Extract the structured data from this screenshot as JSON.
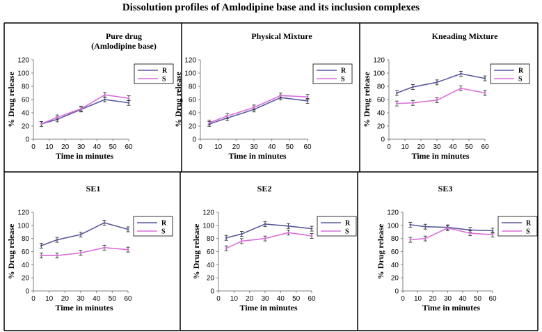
{
  "title": "Dissolution profiles of Amlodipine base and its inclusion complexes",
  "colors": {
    "R": "#5a5a9e",
    "S": "#d86ed8",
    "frame": "#000000",
    "axis": "#808080"
  },
  "chart_data": [
    {
      "type": "line",
      "title": "Pure drug",
      "subtitle": "(Amlodipine base)",
      "xlabel": "Time in minutes",
      "ylabel": "% Drug release",
      "xlim": [
        0,
        60
      ],
      "ylim": [
        0,
        120
      ],
      "xticks": [
        0,
        10,
        20,
        30,
        40,
        50,
        60
      ],
      "yticks": [
        0,
        20,
        40,
        60,
        80,
        100,
        120
      ],
      "legend_position": "top-right",
      "x": [
        5,
        15,
        30,
        45,
        60
      ],
      "series": [
        {
          "name": "R",
          "values": [
            23,
            30,
            45,
            60,
            55
          ]
        },
        {
          "name": "S",
          "values": [
            23,
            33,
            46,
            67,
            62
          ]
        }
      ]
    },
    {
      "type": "line",
      "title": "Physical Mixture",
      "xlabel": "Time in minutes",
      "ylabel": "% Drug release",
      "xlim": [
        0,
        60
      ],
      "ylim": [
        0,
        120
      ],
      "xticks": [
        0,
        10,
        20,
        30,
        40,
        50,
        60
      ],
      "yticks": [
        0,
        20,
        40,
        60,
        80,
        100,
        120
      ],
      "legend_position": "top-right",
      "x": [
        5,
        15,
        30,
        45,
        60
      ],
      "series": [
        {
          "name": "R",
          "values": [
            23,
            32,
            45,
            63,
            58
          ]
        },
        {
          "name": "S",
          "values": [
            25,
            35,
            48,
            66,
            64
          ]
        }
      ]
    },
    {
      "type": "line",
      "title": "Kneading Mixture",
      "xlabel": "Time in minutes",
      "ylabel": "% Drug release",
      "xlim": [
        0,
        60
      ],
      "ylim": [
        0,
        120
      ],
      "xticks": [
        0,
        10,
        20,
        30,
        40,
        50,
        60
      ],
      "yticks": [
        0,
        20,
        40,
        60,
        80,
        100,
        120
      ],
      "legend_position": "top-right",
      "x": [
        5,
        15,
        30,
        45,
        60
      ],
      "series": [
        {
          "name": "R",
          "values": [
            70,
            79,
            86,
            99,
            92
          ]
        },
        {
          "name": "S",
          "values": [
            54,
            55,
            59,
            77,
            70
          ]
        }
      ]
    },
    {
      "type": "line",
      "title": "SE1",
      "xlabel": "Time in minutes",
      "ylabel": "% Drug release",
      "xlim": [
        0,
        60
      ],
      "ylim": [
        0,
        120
      ],
      "xticks": [
        0,
        10,
        20,
        30,
        40,
        50,
        60
      ],
      "yticks": [
        0,
        20,
        40,
        60,
        80,
        100,
        120
      ],
      "legend_position": "top-right",
      "x": [
        5,
        15,
        30,
        45,
        60
      ],
      "series": [
        {
          "name": "R",
          "values": [
            69,
            78,
            86,
            104,
            94
          ]
        },
        {
          "name": "S",
          "values": [
            54,
            54,
            58,
            66,
            63
          ]
        }
      ]
    },
    {
      "type": "line",
      "title": "SE2",
      "xlabel": "Time in minutes",
      "ylabel": "% Drug release",
      "xlim": [
        0,
        60
      ],
      "ylim": [
        0,
        120
      ],
      "xticks": [
        0,
        10,
        20,
        30,
        40,
        50,
        60
      ],
      "yticks": [
        0,
        20,
        40,
        60,
        80,
        100,
        120
      ],
      "legend_position": "top-right",
      "x": [
        5,
        15,
        30,
        45,
        60
      ],
      "series": [
        {
          "name": "R",
          "values": [
            81,
            87,
            102,
            99,
            95
          ]
        },
        {
          "name": "S",
          "values": [
            65,
            76,
            80,
            89,
            84
          ]
        }
      ]
    },
    {
      "type": "line",
      "title": "SE3",
      "xlabel": "Time in minutes",
      "ylabel": "% Drug release",
      "xlim": [
        0,
        60
      ],
      "ylim": [
        0,
        120
      ],
      "xticks": [
        0,
        10,
        20,
        30,
        40,
        50,
        60
      ],
      "yticks": [
        0,
        20,
        40,
        60,
        80,
        100,
        120
      ],
      "legend_position": "top-right",
      "x": [
        5,
        15,
        30,
        45,
        60
      ],
      "series": [
        {
          "name": "R",
          "values": [
            101,
            98,
            97,
            93,
            92
          ]
        },
        {
          "name": "S",
          "values": [
            78,
            80,
            96,
            88,
            86
          ]
        }
      ]
    }
  ]
}
